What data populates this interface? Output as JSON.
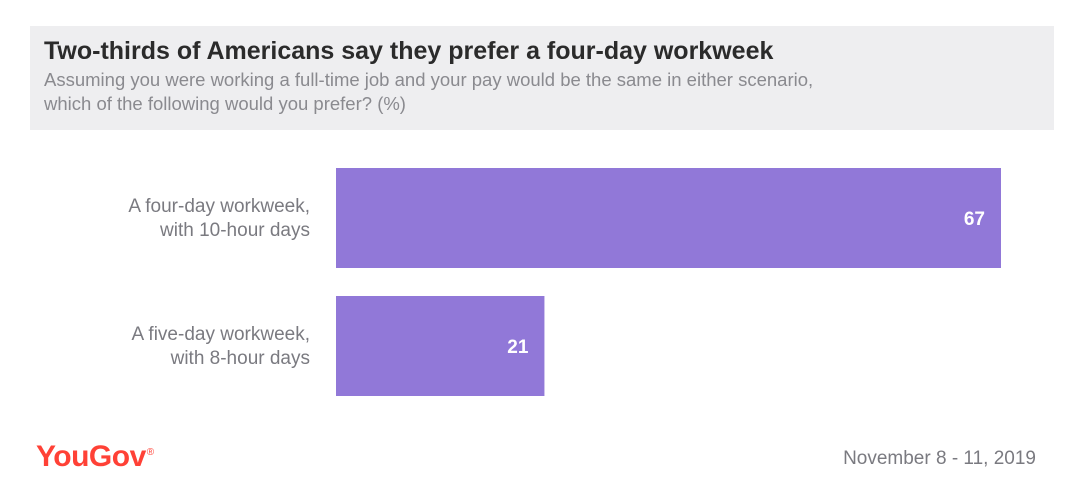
{
  "header": {
    "title": "Two-thirds of Americans say they prefer a four-day workweek",
    "subtitle_lines": [
      "Assuming you were working a full-time job and your pay would be the same in either scenario,",
      "which of the following would you prefer? (%)"
    ]
  },
  "chart_data": {
    "type": "bar",
    "orientation": "horizontal",
    "categories": [
      [
        "A four-day workweek,",
        "with 10-hour days"
      ],
      [
        "A five-day workweek,",
        "with 8-hour days"
      ]
    ],
    "values": [
      67,
      21
    ],
    "bar_color": "#9178d8",
    "label_color": "#ffffff",
    "grid": false
  },
  "footer": {
    "logo_text": "YouGov",
    "logo_mark": "®",
    "logo_color": "#ff4136",
    "date": "November 8 - 11, 2019"
  }
}
